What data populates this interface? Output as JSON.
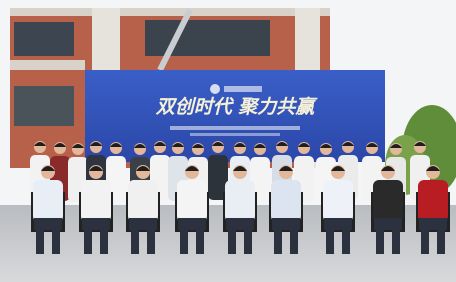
{
  "banner": {
    "slogan": "双创时代 聚力共赢"
  }
}
